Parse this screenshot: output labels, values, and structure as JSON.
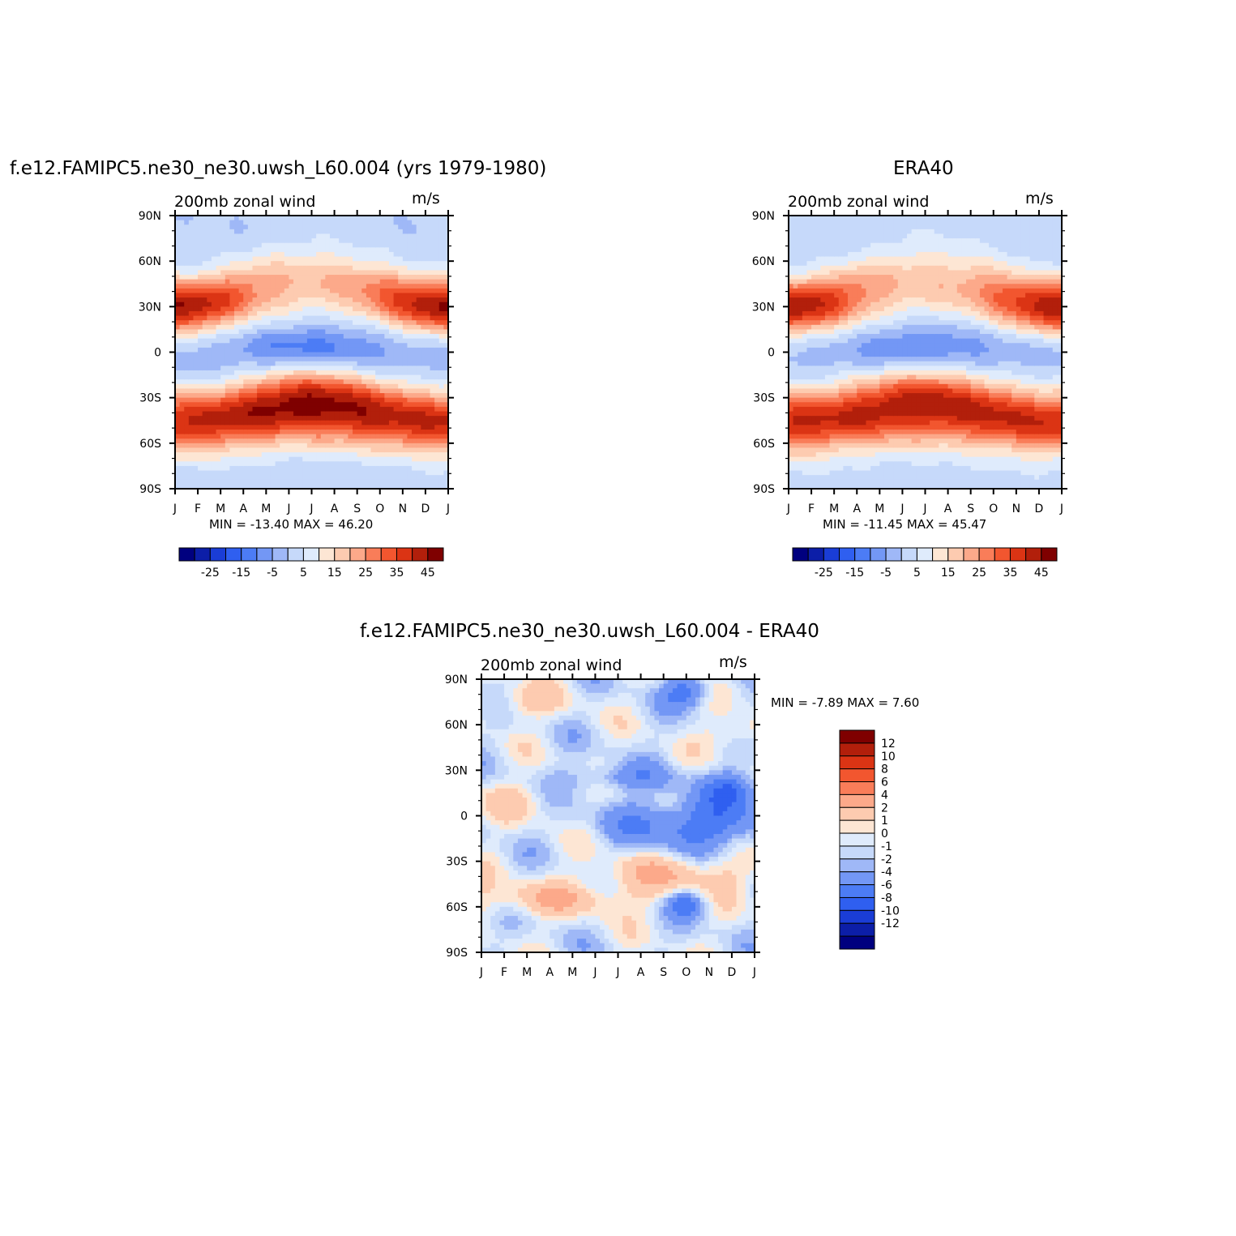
{
  "panels": [
    {
      "title": "f.e12.FAMIPC5.ne30_ne30.uwsh_L60.004 (yrs 1979-1980)",
      "left_label": "200mb zonal wind",
      "right_label": "m/s",
      "minmax_text": "MIN = -13.40 MAX = 46.20"
    },
    {
      "title": "ERA40",
      "left_label": "200mb zonal wind",
      "right_label": "m/s",
      "minmax_text": "MIN = -11.45 MAX = 45.47"
    },
    {
      "title": "f.e12.FAMIPC5.ne30_ne30.uwsh_L60.004 - ERA40",
      "left_label": "200mb zonal wind",
      "right_label": "m/s",
      "minmax_text": "MIN = -7.89 MAX = 7.60"
    }
  ],
  "colorbar_abs": {
    "colors": [
      "#00007f",
      "#0c1ea8",
      "#1a3dd6",
      "#2f5ff0",
      "#4c7cf5",
      "#7397f5",
      "#9fb8f7",
      "#c6d9fa",
      "#dfebfc",
      "#fde6d4",
      "#fdcbb0",
      "#fca98a",
      "#f97d59",
      "#f2562f",
      "#db3414",
      "#b21f0b",
      "#7f0000"
    ],
    "tick_labels": [
      "-25",
      "-15",
      "-5",
      "5",
      "15",
      "25",
      "35",
      "45"
    ]
  },
  "colorbar_diff": {
    "colors": [
      "#7f0000",
      "#b21f0b",
      "#db3414",
      "#f2562f",
      "#f97d59",
      "#fca98a",
      "#fdcbb0",
      "#fde6d4",
      "#dfebfc",
      "#c6d9fa",
      "#9fb8f7",
      "#7397f5",
      "#4c7cf5",
      "#2f5ff0",
      "#1a3dd6",
      "#0c1ea8",
      "#00007f"
    ],
    "tick_labels": [
      "12",
      "10",
      "8",
      "6",
      "4",
      "2",
      "1",
      "0",
      "-1",
      "-2",
      "-4",
      "-6",
      "-8",
      "-10",
      "-12"
    ]
  },
  "chart_data": [
    {
      "type": "heatmap",
      "title": "f.e12.FAMIPC5.ne30_ne30.uwsh_L60.004 (yrs 1979-1980)",
      "variable": "200mb zonal wind",
      "units": "m/s",
      "x_tick_labels": [
        "J",
        "F",
        "M",
        "A",
        "M",
        "J",
        "J",
        "A",
        "S",
        "O",
        "N",
        "D",
        "J"
      ],
      "y_tick_labels": [
        "90N",
        "60N",
        "30N",
        "0",
        "30S",
        "60S",
        "90S"
      ],
      "xlim": [
        0,
        12
      ],
      "ylim": [
        -90,
        90
      ],
      "min": -13.4,
      "max": 46.2,
      "contour_levels": [
        -30,
        -25,
        -20,
        -15,
        -10,
        -5,
        0,
        5,
        10,
        15,
        20,
        25,
        30,
        35,
        40,
        45,
        50
      ],
      "features": {
        "nh_jet_lat": 30,
        "nh_jet_winter_max": 46,
        "nh_jet_summer_lat": 45,
        "nh_jet_summer_max": 20,
        "sh_jet_lat": -30,
        "sh_jet_winter_max": 43,
        "sh_jet_summer_max": 30,
        "tropical_easterly_summer_min": -13.4,
        "tropical_easterly_winter_min": -4,
        "pole_value": 2
      }
    },
    {
      "type": "heatmap",
      "title": "ERA40",
      "variable": "200mb zonal wind",
      "units": "m/s",
      "x_tick_labels": [
        "J",
        "F",
        "M",
        "A",
        "M",
        "J",
        "J",
        "A",
        "S",
        "O",
        "N",
        "D",
        "J"
      ],
      "y_tick_labels": [
        "90N",
        "60N",
        "30N",
        "0",
        "30S",
        "60S",
        "90S"
      ],
      "xlim": [
        0,
        12
      ],
      "ylim": [
        -90,
        90
      ],
      "min": -11.45,
      "max": 45.47,
      "contour_levels": [
        -30,
        -25,
        -20,
        -15,
        -10,
        -5,
        0,
        5,
        10,
        15,
        20,
        25,
        30,
        35,
        40,
        45,
        50
      ],
      "features": {
        "nh_jet_lat": 30,
        "nh_jet_winter_max": 45,
        "nh_jet_summer_lat": 45,
        "nh_jet_summer_max": 19,
        "sh_jet_lat": -30,
        "sh_jet_winter_max": 39,
        "sh_jet_summer_max": 29,
        "tropical_easterly_summer_min": -11.5,
        "tropical_easterly_winter_min": -3,
        "pole_value": 3
      }
    },
    {
      "type": "heatmap",
      "title": "f.e12.FAMIPC5.ne30_ne30.uwsh_L60.004 - ERA40",
      "variable": "200mb zonal wind",
      "units": "m/s",
      "x_tick_labels": [
        "J",
        "F",
        "M",
        "A",
        "M",
        "J",
        "J",
        "A",
        "S",
        "O",
        "N",
        "D",
        "J"
      ],
      "y_tick_labels": [
        "90N",
        "60N",
        "30N",
        "0",
        "30S",
        "60S",
        "90S"
      ],
      "xlim": [
        0,
        12
      ],
      "ylim": [
        -90,
        90
      ],
      "min": -7.89,
      "max": 7.6,
      "contour_levels": [
        -12,
        -10,
        -8,
        -6,
        -4,
        -2,
        -1,
        0,
        1,
        2,
        4,
        6,
        8,
        10,
        12
      ]
    }
  ]
}
